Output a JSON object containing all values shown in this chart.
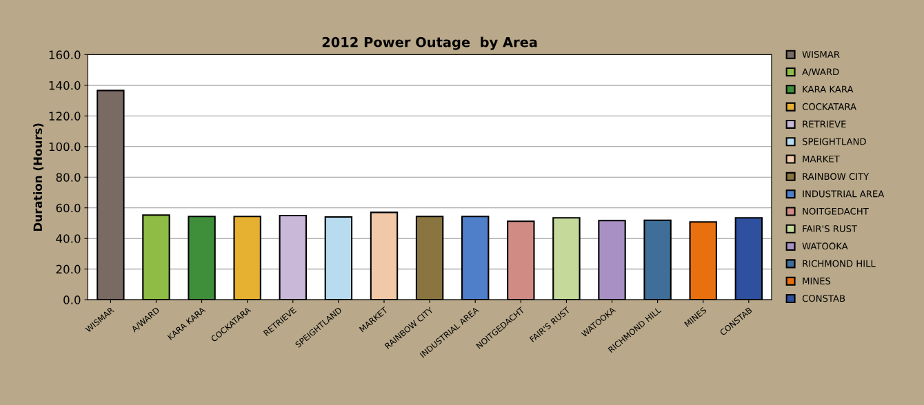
{
  "chart_data": {
    "type": "bar",
    "title": "2012 Power Outage  by Area",
    "ylabel": "Duration (Hours)",
    "categories": [
      "WISMAR",
      "A/WARD",
      "KARA KARA",
      "COCKATARA",
      "RETRIEVE",
      "SPEIGHTLAND",
      "MARKET",
      "RAINBOW CITY",
      "INDUSTRIAL AREA",
      "NOITGEDACHT",
      "FAIR'S RUST",
      "WATOOKA",
      "RICHMOND HILL",
      "MINES",
      "CONSTAB"
    ],
    "series": [
      {
        "name": "WISMAR",
        "color": "#7a6a64",
        "values": [
          136.6,
          null,
          null,
          null,
          null,
          null,
          null,
          null,
          null,
          null,
          null,
          null,
          null,
          null,
          null
        ]
      },
      {
        "name": "A/WARD",
        "color": "#8fbc45",
        "values": [
          null,
          55.3,
          null,
          null,
          null,
          null,
          null,
          null,
          null,
          null,
          null,
          null,
          null,
          null,
          null
        ]
      },
      {
        "name": "KARA KARA",
        "color": "#3f8f3a",
        "values": [
          null,
          null,
          54.4,
          null,
          null,
          null,
          null,
          null,
          null,
          null,
          null,
          null,
          null,
          null,
          null
        ]
      },
      {
        "name": "COCKATARA",
        "color": "#e6b030",
        "values": [
          null,
          null,
          null,
          54.4,
          null,
          null,
          null,
          null,
          null,
          null,
          null,
          null,
          null,
          null,
          null
        ]
      },
      {
        "name": "RETRIEVE",
        "color": "#c9b8d8",
        "values": [
          null,
          null,
          null,
          null,
          54.9,
          null,
          null,
          null,
          null,
          null,
          null,
          null,
          null,
          null,
          null
        ]
      },
      {
        "name": "SPEIGHTLAND",
        "color": "#b8dcef",
        "values": [
          null,
          null,
          null,
          null,
          null,
          54.0,
          null,
          null,
          null,
          null,
          null,
          null,
          null,
          null,
          null
        ]
      },
      {
        "name": "MARKET",
        "color": "#f2c9a8",
        "values": [
          null,
          null,
          null,
          null,
          null,
          null,
          57.0,
          null,
          null,
          null,
          null,
          null,
          null,
          null,
          null
        ]
      },
      {
        "name": "RAINBOW CITY",
        "color": "#8a7540",
        "values": [
          null,
          null,
          null,
          null,
          null,
          null,
          null,
          54.4,
          null,
          null,
          null,
          null,
          null,
          null,
          null
        ]
      },
      {
        "name": "INDUSTRIAL AREA",
        "color": "#4f7fc8",
        "values": [
          null,
          null,
          null,
          null,
          null,
          null,
          null,
          null,
          54.4,
          null,
          null,
          null,
          null,
          null,
          null
        ]
      },
      {
        "name": "NOITGEDACHT",
        "color": "#d08c84",
        "values": [
          null,
          null,
          null,
          null,
          null,
          null,
          null,
          null,
          null,
          51.2,
          null,
          null,
          null,
          null,
          null
        ]
      },
      {
        "name": "FAIR'S RUST",
        "color": "#c4d99a",
        "values": [
          null,
          null,
          null,
          null,
          null,
          null,
          null,
          null,
          null,
          null,
          53.5,
          null,
          null,
          null,
          null
        ]
      },
      {
        "name": "WATOOKA",
        "color": "#a890c4",
        "values": [
          null,
          null,
          null,
          null,
          null,
          null,
          null,
          null,
          null,
          null,
          null,
          51.7,
          null,
          null,
          null
        ]
      },
      {
        "name": "RICHMOND HILL",
        "color": "#3f6f98",
        "values": [
          null,
          null,
          null,
          null,
          null,
          null,
          null,
          null,
          null,
          null,
          null,
          null,
          51.9,
          null,
          null
        ]
      },
      {
        "name": "MINES",
        "color": "#e8700e",
        "values": [
          null,
          null,
          null,
          null,
          null,
          null,
          null,
          null,
          null,
          null,
          null,
          null,
          null,
          50.8,
          null
        ]
      },
      {
        "name": "CONSTAB",
        "color": "#2f4f9f",
        "values": [
          null,
          null,
          null,
          null,
          null,
          null,
          null,
          null,
          null,
          null,
          null,
          null,
          null,
          null,
          53.5
        ]
      }
    ],
    "ylim": [
      0,
      160
    ],
    "yticks": [
      {
        "value": 0,
        "label": "0.0"
      },
      {
        "value": 20,
        "label": "20.0"
      },
      {
        "value": 40,
        "label": "40.0"
      },
      {
        "value": 60,
        "label": "60.0"
      },
      {
        "value": 80,
        "label": "80.0"
      },
      {
        "value": 100,
        "label": "100.0"
      },
      {
        "value": 120,
        "label": "120.0"
      },
      {
        "value": 140,
        "label": "140.0"
      },
      {
        "value": 160,
        "label": "160.0"
      }
    ],
    "grid": "y",
    "legend": "right"
  }
}
